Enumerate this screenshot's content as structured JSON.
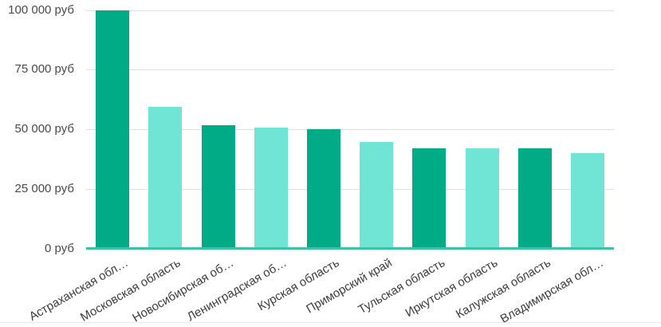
{
  "chart_data": {
    "type": "bar",
    "title": "",
    "xlabel": "",
    "ylabel": "",
    "value_unit": "руб",
    "categories": [
      "Астраханская обл…",
      "Московская область",
      "Новосибирская об…",
      "Ленинградская об…",
      "Курская область",
      "Приморский край",
      "Тульская область",
      "Иркутская область",
      "Калужская область",
      "Владимирская обл…"
    ],
    "values": [
      100000,
      59500,
      51700,
      50700,
      49900,
      44700,
      42100,
      41900,
      42000,
      40000
    ],
    "ylim": [
      0,
      100000
    ],
    "y_tick_values": [
      0,
      25000,
      50000,
      75000,
      100000
    ],
    "y_tick_labels": [
      "0 руб",
      "25 000 руб",
      "50 000 руб",
      "75 000 руб",
      "100 000 руб"
    ],
    "grid": true,
    "legend_position": "none",
    "bar_color_pattern": "alternating"
  },
  "colors": {
    "bar_dark": "#00ab86",
    "bar_light": "#70e5d5",
    "baseline": "#3cc2a5",
    "gridline": "#e0e0e0",
    "y_label_text": "#4a4a4a",
    "x_label_text": "#3c3c3c",
    "bottom_border": "#e8eaed",
    "background": "#ffffff"
  }
}
